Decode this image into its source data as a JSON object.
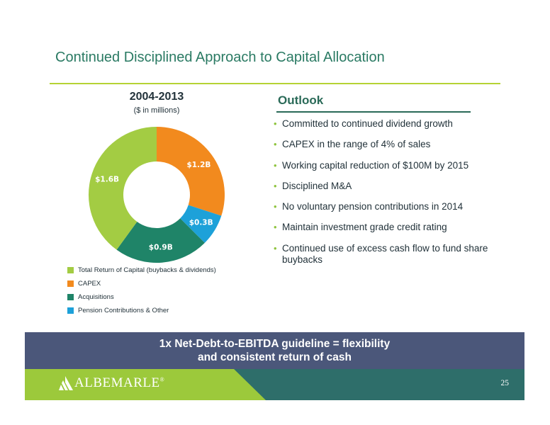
{
  "slide": {
    "title": "Continued Disciplined Approach to Capital Allocation",
    "page_number": "25"
  },
  "colors": {
    "title": "#2a7a63",
    "accent_line": "#b5d334",
    "banner": "#4b577a",
    "footer_green": "#9cc93b",
    "footer_teal": "#2e6e6a"
  },
  "chart_data": {
    "type": "pie",
    "title": "2004-2013",
    "subtitle": "($ in millions)",
    "donut": true,
    "categories": [
      "CAPEX",
      "Pension Contributions & Other",
      "Acquisitions",
      "Total Return of Capital (buybacks & dividends)"
    ],
    "values": [
      1.2,
      0.3,
      0.9,
      1.6
    ],
    "labels": [
      "$1.2B",
      "$0.3B",
      "$0.9B",
      "$1.6B"
    ],
    "colors": [
      "#f28a1e",
      "#1da1d9",
      "#1f8468",
      "#a3cc43"
    ],
    "legend_placement": "bottom",
    "legend": [
      {
        "label": "Total Return of Capital (buybacks & dividends)",
        "color": "#a3cc43"
      },
      {
        "label": "CAPEX",
        "color": "#f28a1e"
      },
      {
        "label": "Acquisitions",
        "color": "#1f8468"
      },
      {
        "label": "Pension Contributions & Other",
        "color": "#1da1d9"
      }
    ]
  },
  "outlook": {
    "title": "Outlook",
    "bullets": [
      "Committed to continued dividend growth",
      "CAPEX in the range of 4% of sales",
      "Working capital reduction of $100M by 2015",
      "Disciplined M&A",
      "No voluntary pension contributions in 2014",
      "Maintain investment grade credit rating",
      "Continued use of excess cash flow to fund share buybacks"
    ]
  },
  "banner": {
    "line1": "1x Net-Debt-to-EBITDA guideline = flexibility",
    "line2": "and consistent return of cash"
  },
  "footer": {
    "logo_text": "ALBEMARLE",
    "logo_mark": "®"
  }
}
